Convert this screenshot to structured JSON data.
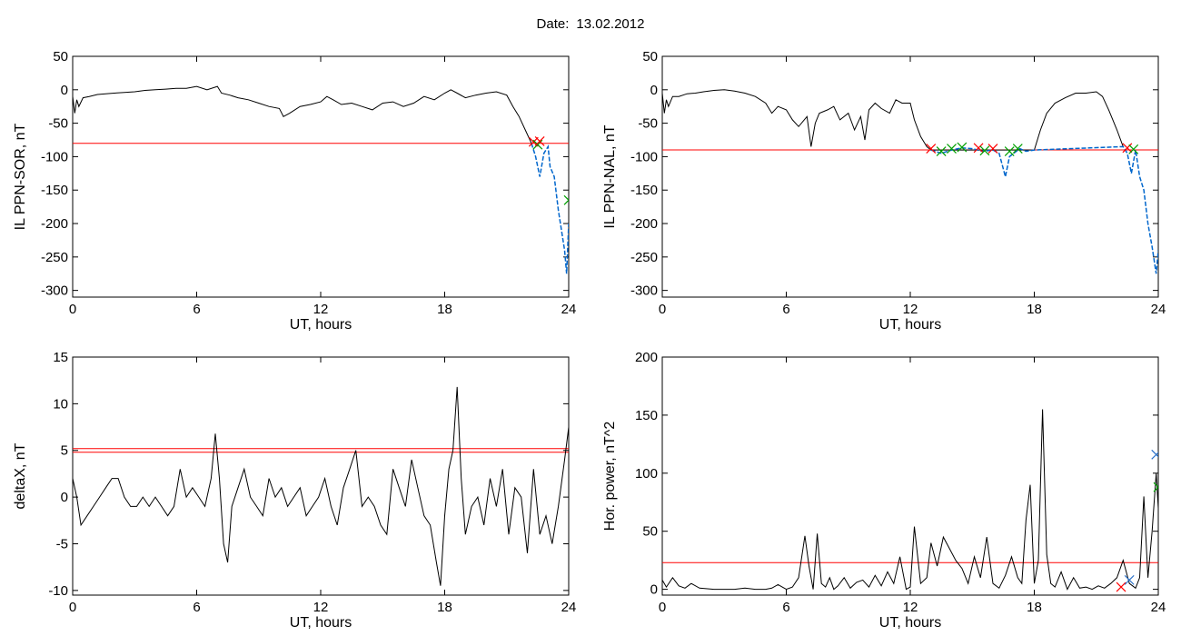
{
  "header": {
    "date_label": "Date:",
    "date_value": "13.02.2012"
  },
  "colors": {
    "signal": "#000000",
    "threshold": "#ff0000",
    "highlight": "#0066cc",
    "marker_red": "#ff0000",
    "marker_green": "#00a000",
    "marker_blue": "#2a70c8"
  },
  "chart_data": [
    {
      "type": "line",
      "ylabel": "IL PPN-SOR, nT",
      "xlabel": "UT, hours",
      "xlim": [
        0,
        24
      ],
      "ylim": [
        -310,
        50
      ],
      "xticks": [
        0,
        6,
        12,
        18,
        24
      ],
      "yticks": [
        50,
        0,
        -50,
        -100,
        -150,
        -200,
        -250,
        -300
      ],
      "threshold": [
        -80
      ],
      "series": [
        {
          "x": [
            0,
            0.1,
            0.2,
            0.3,
            0.5,
            0.8,
            1.2,
            1.6,
            2.0,
            2.5,
            3.0,
            3.5,
            4.0,
            4.5,
            5.0,
            5.5,
            6.0,
            6.5,
            7.0,
            7.2,
            7.6,
            8.0,
            8.5,
            9.0,
            9.5,
            10.0,
            10.2,
            10.5,
            11.0,
            11.5,
            12.0,
            12.3,
            12.6,
            13.0,
            13.5,
            14.0,
            14.5,
            15.0,
            15.5,
            16.0,
            16.5,
            17.0,
            17.5,
            18.0,
            18.3,
            18.6,
            19.0,
            19.5,
            20.0,
            20.5,
            21.0,
            21.3,
            21.6,
            21.9,
            22.2
          ],
          "y": [
            -10,
            -35,
            -15,
            -25,
            -12,
            -10,
            -7,
            -6,
            -5,
            -4,
            -3,
            -1,
            0,
            1,
            2,
            2,
            5,
            0,
            5,
            -5,
            -8,
            -12,
            -15,
            -20,
            -25,
            -28,
            -40,
            -35,
            -25,
            -22,
            -18,
            -10,
            -15,
            -22,
            -20,
            -25,
            -30,
            -20,
            -18,
            -25,
            -20,
            -10,
            -15,
            -5,
            0,
            -5,
            -12,
            -8,
            -5,
            -3,
            -8,
            -25,
            -40,
            -60,
            -80
          ]
        }
      ],
      "highlight": {
        "x": [
          22.2,
          22.4,
          22.6,
          22.8,
          23.0,
          23.1,
          23.3,
          23.5,
          23.7,
          23.8,
          23.9,
          24.0
        ],
        "y": [
          -80,
          -100,
          -130,
          -95,
          -85,
          -115,
          -130,
          -180,
          -220,
          -240,
          -275,
          -200
        ]
      },
      "markers": [
        {
          "x": 22.3,
          "y": -78,
          "color": "red"
        },
        {
          "x": 22.5,
          "y": -82,
          "color": "green"
        },
        {
          "x": 22.6,
          "y": -77,
          "color": "red"
        },
        {
          "x": 24.0,
          "y": -165,
          "color": "green"
        }
      ]
    },
    {
      "type": "line",
      "ylabel": "IL PPN-NAL, nT",
      "xlabel": "UT, hours",
      "xlim": [
        0,
        24
      ],
      "ylim": [
        -310,
        50
      ],
      "xticks": [
        0,
        6,
        12,
        18,
        24
      ],
      "yticks": [
        50,
        0,
        -50,
        -100,
        -150,
        -200,
        -250,
        -300
      ],
      "threshold": [
        -90
      ],
      "series": [
        {
          "x": [
            0,
            0.1,
            0.2,
            0.3,
            0.5,
            0.8,
            1.2,
            1.6,
            2.0,
            2.5,
            3.0,
            3.5,
            4.0,
            4.5,
            5.0,
            5.3,
            5.6,
            6.0,
            6.3,
            6.6,
            7.0,
            7.2,
            7.4,
            7.6,
            8.0,
            8.3,
            8.6,
            9.0,
            9.3,
            9.6,
            9.8,
            10.0,
            10.3,
            10.6,
            11.0,
            11.3,
            11.6,
            12.0,
            12.2,
            12.5,
            12.8,
            13.0,
            18.0,
            18.3,
            18.6,
            19.0,
            19.5,
            20.0,
            20.5,
            21.0,
            21.3,
            21.6,
            22.0,
            22.3
          ],
          "y": [
            -5,
            -35,
            -15,
            -25,
            -10,
            -10,
            -6,
            -5,
            -3,
            -1,
            0,
            -2,
            -5,
            -10,
            -20,
            -35,
            -25,
            -30,
            -45,
            -55,
            -40,
            -85,
            -50,
            -35,
            -30,
            -25,
            -45,
            -35,
            -60,
            -40,
            -75,
            -30,
            -20,
            -28,
            -35,
            -15,
            -20,
            -20,
            -45,
            -70,
            -85,
            -90,
            -90,
            -60,
            -35,
            -20,
            -12,
            -5,
            -5,
            -3,
            -10,
            -30,
            -60,
            -85
          ]
        }
      ],
      "highlight": {
        "x": [
          13.0,
          13.5,
          14.0,
          14.5,
          15.0,
          15.5,
          16.0,
          16.3,
          16.6,
          16.8,
          17.0,
          17.3,
          17.6,
          18.0,
          22.3,
          22.5,
          22.7,
          22.9,
          23.1,
          23.3,
          23.5,
          23.7,
          23.9,
          24.0
        ],
        "y": [
          -90,
          -95,
          -90,
          -87,
          -88,
          -92,
          -90,
          -95,
          -130,
          -100,
          -95,
          -88,
          -92,
          -90,
          -85,
          -95,
          -125,
          -90,
          -130,
          -150,
          -200,
          -235,
          -275,
          -240
        ]
      },
      "markers": [
        {
          "x": 13.0,
          "y": -88,
          "color": "red"
        },
        {
          "x": 13.5,
          "y": -92,
          "color": "green"
        },
        {
          "x": 14.0,
          "y": -88,
          "color": "green"
        },
        {
          "x": 14.5,
          "y": -86,
          "color": "green"
        },
        {
          "x": 15.3,
          "y": -87,
          "color": "red"
        },
        {
          "x": 15.6,
          "y": -91,
          "color": "green"
        },
        {
          "x": 16.0,
          "y": -88,
          "color": "red"
        },
        {
          "x": 16.8,
          "y": -92,
          "color": "green"
        },
        {
          "x": 17.2,
          "y": -88,
          "color": "green"
        },
        {
          "x": 22.5,
          "y": -87,
          "color": "red"
        },
        {
          "x": 22.8,
          "y": -89,
          "color": "green"
        }
      ]
    },
    {
      "type": "line",
      "ylabel": "deltaX, nT",
      "xlabel": "UT, hours",
      "xlim": [
        0,
        24
      ],
      "ylim": [
        -10.5,
        15
      ],
      "xticks": [
        0,
        6,
        12,
        18,
        24
      ],
      "yticks": [
        15,
        10,
        5,
        0,
        -5,
        -10
      ],
      "threshold": [
        5.2,
        4.8
      ],
      "series": [
        {
          "x": [
            0,
            0.2,
            0.4,
            0.7,
            1.0,
            1.3,
            1.6,
            1.9,
            2.2,
            2.5,
            2.8,
            3.1,
            3.4,
            3.7,
            4.0,
            4.3,
            4.6,
            4.9,
            5.2,
            5.5,
            5.8,
            6.1,
            6.4,
            6.7,
            6.9,
            7.1,
            7.3,
            7.5,
            7.7,
            8.0,
            8.3,
            8.6,
            8.9,
            9.2,
            9.5,
            9.8,
            10.1,
            10.4,
            10.7,
            11.0,
            11.3,
            11.6,
            11.9,
            12.2,
            12.5,
            12.8,
            13.1,
            13.4,
            13.7,
            14.0,
            14.3,
            14.6,
            14.9,
            15.2,
            15.5,
            15.8,
            16.1,
            16.4,
            16.7,
            17.0,
            17.3,
            17.6,
            17.8,
            18.0,
            18.2,
            18.4,
            18.6,
            18.8,
            19.0,
            19.3,
            19.6,
            19.9,
            20.2,
            20.5,
            20.8,
            21.1,
            21.4,
            21.7,
            22.0,
            22.3,
            22.6,
            22.9,
            23.2,
            23.5,
            23.8,
            24.0
          ],
          "y": [
            2,
            0,
            -3,
            -2,
            -1,
            0,
            1,
            2,
            2,
            0,
            -1,
            -1,
            0,
            -1,
            0,
            -1,
            -2,
            -1,
            3,
            0,
            1,
            0,
            -1,
            2,
            6.8,
            2,
            -5,
            -7,
            -1,
            1,
            3,
            0,
            -1,
            -2,
            2,
            0,
            1,
            -1,
            0,
            1,
            -2,
            -1,
            0,
            2,
            -1,
            -3,
            1,
            3,
            5,
            -1,
            0,
            -1,
            -3,
            -4,
            3,
            1,
            -1,
            4,
            1,
            -2,
            -3,
            -7,
            -9.5,
            -2,
            3,
            5,
            11.8,
            2,
            -4,
            -1,
            0,
            -3,
            2,
            -1,
            3,
            -4,
            1,
            0,
            -6,
            3,
            -4,
            -2,
            -5,
            -1,
            4,
            7.5
          ]
        }
      ],
      "highlight": null,
      "markers": []
    },
    {
      "type": "line",
      "ylabel": "Hor. power, nT^2",
      "xlabel": "UT, hours",
      "xlim": [
        0,
        24
      ],
      "ylim": [
        -5,
        200
      ],
      "xticks": [
        0,
        6,
        12,
        18,
        24
      ],
      "yticks": [
        200,
        150,
        100,
        50,
        0
      ],
      "threshold": [
        23
      ],
      "series": [
        {
          "x": [
            0,
            0.2,
            0.5,
            0.8,
            1.1,
            1.4,
            1.8,
            2.5,
            3.0,
            3.5,
            4.0,
            4.5,
            5.0,
            5.3,
            5.6,
            6.0,
            6.3,
            6.6,
            6.9,
            7.1,
            7.3,
            7.5,
            7.7,
            7.9,
            8.1,
            8.3,
            8.5,
            8.8,
            9.1,
            9.4,
            9.7,
            10.0,
            10.3,
            10.6,
            10.9,
            11.2,
            11.5,
            11.8,
            12.0,
            12.2,
            12.5,
            12.8,
            13.0,
            13.3,
            13.6,
            13.9,
            14.2,
            14.5,
            14.8,
            15.1,
            15.4,
            15.7,
            16.0,
            16.3,
            16.6,
            16.9,
            17.2,
            17.4,
            17.6,
            17.8,
            18.0,
            18.2,
            18.4,
            18.6,
            18.8,
            19.0,
            19.3,
            19.6,
            19.9,
            20.2,
            20.5,
            20.8,
            21.1,
            21.4,
            21.7,
            22.0,
            22.3,
            22.6,
            22.9,
            23.1,
            23.3,
            23.5,
            23.7,
            23.9,
            24.0
          ],
          "y": [
            8,
            2,
            10,
            3,
            1,
            5,
            1,
            0,
            0,
            0,
            1,
            0,
            0,
            1,
            4,
            0,
            2,
            10,
            46,
            20,
            0,
            48,
            5,
            2,
            10,
            0,
            3,
            10,
            1,
            6,
            8,
            2,
            12,
            3,
            15,
            5,
            28,
            0,
            2,
            54,
            5,
            10,
            40,
            20,
            45,
            35,
            25,
            18,
            5,
            28,
            10,
            45,
            5,
            1,
            12,
            28,
            10,
            5,
            60,
            90,
            5,
            25,
            155,
            30,
            5,
            2,
            15,
            0,
            10,
            1,
            2,
            0,
            3,
            1,
            5,
            10,
            25,
            5,
            1,
            10,
            80,
            10,
            50,
            100,
            70
          ]
        }
      ],
      "highlight": null,
      "markers": [
        {
          "x": 22.2,
          "y": 2,
          "color": "red"
        },
        {
          "x": 22.6,
          "y": 8,
          "color": "blue"
        },
        {
          "x": 23.9,
          "y": 116,
          "color": "blue"
        },
        {
          "x": 24.0,
          "y": 88,
          "color": "green"
        }
      ]
    }
  ]
}
